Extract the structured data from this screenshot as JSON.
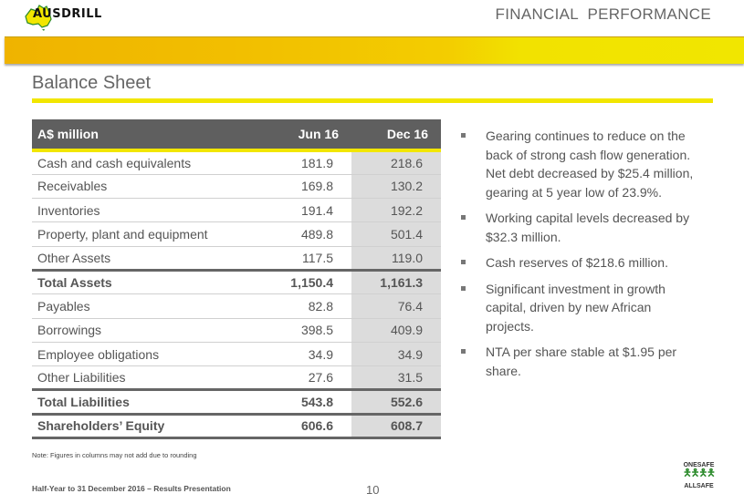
{
  "header": {
    "logo_text": "AUSDRILL",
    "section": "FINANCIAL  PERFORMANCE",
    "title": "Balance Sheet"
  },
  "colors": {
    "accent": "#f2e600",
    "header_bg": "#5f5f5f",
    "shaded_col": "#dcdcdc"
  },
  "table": {
    "columns": [
      "A$ million",
      "Jun 16",
      "Dec 16"
    ],
    "rows": [
      {
        "label": "Cash and cash equivalents",
        "jun": "181.9",
        "dec": "218.6"
      },
      {
        "label": "Receivables",
        "jun": "169.8",
        "dec": "130.2"
      },
      {
        "label": "Inventories",
        "jun": "191.4",
        "dec": "192.2"
      },
      {
        "label": "Property, plant and equipment",
        "jun": "489.8",
        "dec": "501.4"
      },
      {
        "label": "Other Assets",
        "jun": "117.5",
        "dec": "119.0"
      },
      {
        "label": "Total Assets",
        "jun": "1,150.4",
        "dec": "1,161.3"
      },
      {
        "label": "Payables",
        "jun": "82.8",
        "dec": "76.4"
      },
      {
        "label": "Borrowings",
        "jun": "398.5",
        "dec": "409.9"
      },
      {
        "label": "Employee obligations",
        "jun": "34.9",
        "dec": "34.9"
      },
      {
        "label": "Other Liabilities",
        "jun": "27.6",
        "dec": "31.5"
      },
      {
        "label": "Total Liabilities",
        "jun": "543.8",
        "dec": "552.6"
      },
      {
        "label": "Shareholders’ Equity",
        "jun": "606.6",
        "dec": "608.7"
      }
    ]
  },
  "bullets": [
    "Gearing continues to reduce on the back of strong cash flow generation. Net debt decreased by $25.4 million, gearing at 5 year low of 23.9%.",
    "Working capital levels decreased by $32.3 million.",
    "Cash reserves of $218.6 million.",
    "Significant investment in growth capital, driven by new African projects.",
    "NTA per share stable at $1.95 per share."
  ],
  "note": "Note:  Figures in columns may not add due to rounding",
  "footer": {
    "text": "Half-Year to 31 December 2016 – Results Presentation",
    "page": "10",
    "badge_top": "ONESAFE",
    "badge_bottom": "ALLSAFE"
  }
}
